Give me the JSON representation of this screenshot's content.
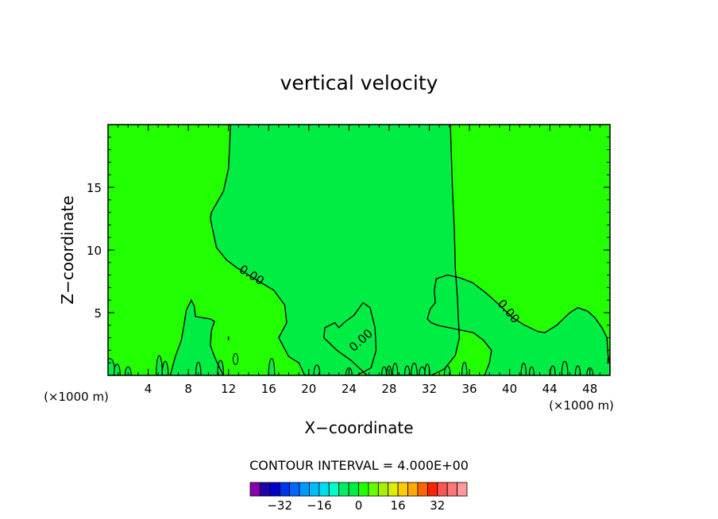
{
  "chart_data": {
    "type": "contour",
    "title": "vertical velocity",
    "xlabel": "X−coordinate",
    "ylabel": "Z−coordinate",
    "x_unit_left": "(×1000 m)",
    "x_unit_right": "(×1000 m)",
    "xlim": [
      0,
      50
    ],
    "ylim": [
      0,
      20
    ],
    "xticks": [
      4,
      8,
      12,
      16,
      20,
      24,
      28,
      32,
      36,
      40,
      44,
      48
    ],
    "yticks": [
      5,
      10,
      15
    ],
    "contour_interval_label": "CONTOUR INTERVAL = 4.000E+00",
    "field_colors": {
      "positive": "#22ff00",
      "negative": "#00ee44"
    },
    "zero_contour_label": "0.00",
    "zero_label_positions": [
      {
        "x": 14.3,
        "z": 8.0,
        "angle": 32
      },
      {
        "x": 39.9,
        "z": 5.1,
        "angle": 50
      },
      {
        "x": 25.2,
        "z": 2.8,
        "angle": -42
      }
    ],
    "zero_contour_main": [
      [
        12.2,
        20.0
      ],
      [
        12.1,
        18.0
      ],
      [
        12.0,
        16.5
      ],
      [
        11.5,
        14.7
      ],
      [
        10.3,
        13.0
      ],
      [
        10.2,
        12.5
      ],
      [
        10.8,
        10.2
      ],
      [
        11.8,
        9.2
      ],
      [
        12.8,
        8.6
      ],
      [
        14.8,
        7.6
      ],
      [
        16.5,
        6.8
      ],
      [
        17.6,
        5.6
      ],
      [
        17.8,
        4.2
      ],
      [
        17.0,
        3.0
      ],
      [
        18.0,
        1.5
      ],
      [
        19.0,
        1.0
      ],
      [
        19.6,
        0.0
      ],
      [
        24.8,
        0.0
      ],
      [
        26.2,
        0.6
      ],
      [
        26.7,
        2.0
      ],
      [
        26.6,
        3.8
      ],
      [
        26.1,
        5.4
      ],
      [
        25.4,
        5.8
      ],
      [
        24.5,
        4.8
      ],
      [
        23.5,
        4.2
      ],
      [
        23.0,
        3.8
      ],
      [
        22.6,
        4.2
      ],
      [
        21.6,
        3.8
      ],
      [
        21.5,
        3.0
      ],
      [
        22.8,
        2.0
      ],
      [
        24.2,
        1.2
      ],
      [
        25.8,
        0.0
      ],
      [
        32.2,
        0.0
      ],
      [
        33.5,
        0.5
      ],
      [
        34.6,
        1.6
      ],
      [
        35.0,
        3.0
      ],
      [
        34.9,
        4.5
      ],
      [
        34.8,
        6.2
      ],
      [
        34.6,
        8.5
      ],
      [
        34.5,
        11.5
      ],
      [
        34.3,
        15.0
      ],
      [
        34.1,
        20.0
      ]
    ],
    "zero_contour_right": [
      [
        31.8,
        4.5
      ],
      [
        32.1,
        5.3
      ],
      [
        32.6,
        5.8
      ],
      [
        32.5,
        6.8
      ],
      [
        32.7,
        7.7
      ],
      [
        33.8,
        8.0
      ],
      [
        35.0,
        7.8
      ],
      [
        36.3,
        7.4
      ],
      [
        37.6,
        6.6
      ],
      [
        39.0,
        5.6
      ],
      [
        40.3,
        4.6
      ],
      [
        41.5,
        4.0
      ],
      [
        42.8,
        3.5
      ],
      [
        43.5,
        3.4
      ],
      [
        44.7,
        4.0
      ],
      [
        46.0,
        5.0
      ],
      [
        46.8,
        5.4
      ],
      [
        47.8,
        5.1
      ],
      [
        48.5,
        4.6
      ],
      [
        49.2,
        3.8
      ],
      [
        49.7,
        3.0
      ],
      [
        49.8,
        1.6
      ],
      [
        50.0,
        1.0
      ],
      [
        50.0,
        0.0
      ],
      [
        37.5,
        0.0
      ],
      [
        38.0,
        1.0
      ],
      [
        38.2,
        2.0
      ],
      [
        37.4,
        2.8
      ],
      [
        36.4,
        3.4
      ],
      [
        35.2,
        3.6
      ],
      [
        34.0,
        3.8
      ],
      [
        32.8,
        4.0
      ],
      [
        32.2,
        4.2
      ],
      [
        31.8,
        4.5
      ]
    ],
    "zero_contour_left_plume": [
      [
        6.2,
        0.0
      ],
      [
        6.7,
        1.5
      ],
      [
        7.3,
        2.8
      ],
      [
        7.6,
        4.2
      ],
      [
        7.8,
        5.2
      ],
      [
        8.3,
        6.0
      ],
      [
        8.6,
        5.5
      ],
      [
        8.7,
        4.7
      ],
      [
        9.4,
        4.6
      ],
      [
        10.2,
        4.5
      ],
      [
        10.6,
        4.3
      ],
      [
        10.3,
        3.6
      ],
      [
        10.2,
        2.4
      ],
      [
        10.6,
        1.5
      ],
      [
        11.0,
        0.8
      ],
      [
        11.5,
        0.0
      ]
    ],
    "ground_bumps": [
      [
        0.2,
        0.5,
        1.8
      ],
      [
        0.9,
        0.3,
        1.2
      ],
      [
        2.0,
        0.3,
        0.9
      ],
      [
        5.1,
        0.3,
        2.1
      ],
      [
        5.7,
        0.3,
        1.5
      ],
      [
        9.0,
        0.25,
        1.4
      ],
      [
        11.2,
        0.3,
        1.6
      ],
      [
        16.3,
        0.3,
        1.8
      ],
      [
        20.8,
        0.3,
        1.1
      ],
      [
        24.0,
        0.3,
        0.8
      ],
      [
        27.5,
        0.2,
        0.9
      ],
      [
        28.0,
        0.2,
        1.0
      ],
      [
        28.6,
        0.25,
        1.3
      ],
      [
        29.8,
        0.25,
        1.0
      ],
      [
        30.5,
        0.3,
        1.3
      ],
      [
        31.3,
        0.3,
        0.9
      ],
      [
        31.8,
        0.25,
        1.2
      ],
      [
        33.8,
        0.3,
        1.0
      ],
      [
        35.5,
        0.25,
        1.4
      ],
      [
        41.4,
        0.25,
        1.3
      ],
      [
        42.2,
        0.2,
        0.9
      ],
      [
        44.3,
        0.25,
        1.0
      ],
      [
        45.5,
        0.3,
        1.5
      ],
      [
        46.8,
        0.25,
        1.0
      ],
      [
        48.0,
        0.3,
        0.8
      ]
    ],
    "colorbar": {
      "colors": [
        "#8800aa",
        "#2200aa",
        "#0000cc",
        "#0033ee",
        "#0066ff",
        "#0099ff",
        "#00bbff",
        "#00ddee",
        "#00ffcc",
        "#00ee66",
        "#00ee44",
        "#22ff00",
        "#66ff00",
        "#aaee00",
        "#ddee00",
        "#ffcc00",
        "#ffaa00",
        "#ff6600",
        "#ff2200",
        "#ff5555",
        "#ff7777",
        "#ff9999"
      ],
      "tick_labels": [
        "−32",
        "−16",
        "0",
        "16",
        "32"
      ],
      "tick_values": [
        -32,
        -16,
        0,
        16,
        32
      ],
      "min": -44,
      "max": 44
    }
  }
}
